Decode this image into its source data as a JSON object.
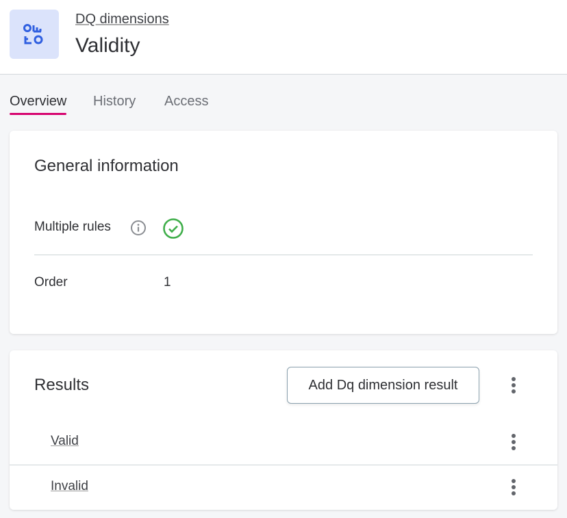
{
  "header": {
    "breadcrumb": "DQ dimensions",
    "title": "Validity",
    "icon": "dq-dimension-icon",
    "icon_color": "#2f5fe0"
  },
  "tabs": [
    {
      "label": "Overview",
      "active": true
    },
    {
      "label": "History"
    },
    {
      "label": "Access"
    }
  ],
  "accent": "#d6006d",
  "general": {
    "title": "General information",
    "fields": [
      {
        "label": "Multiple rules",
        "value": "check-icon",
        "info_icon": true
      },
      {
        "label": "Order",
        "value": "1"
      }
    ]
  },
  "results": {
    "title": "Results",
    "add_button": "Add Dq dimension result",
    "items": [
      {
        "label": "Valid"
      },
      {
        "label": "Invalid"
      }
    ]
  }
}
